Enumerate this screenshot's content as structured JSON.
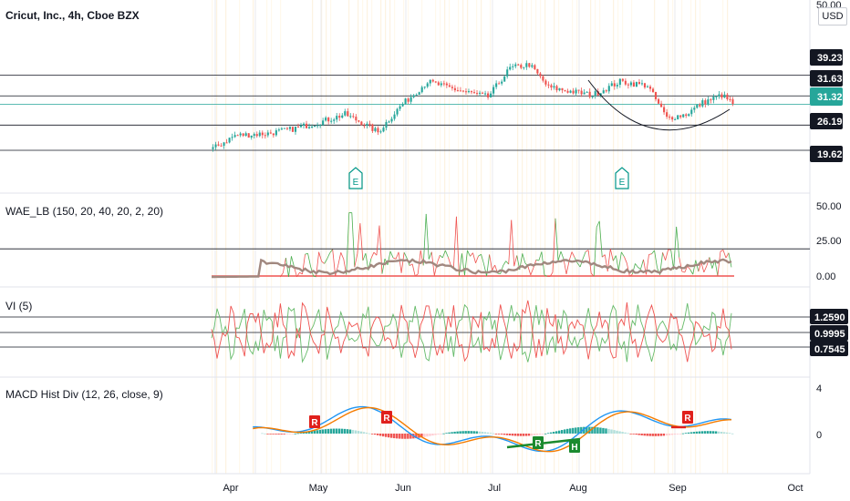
{
  "chart_data": {
    "type": "candlestick",
    "main_title": "Cricut, Inc., 4h, Cboe BZX",
    "currency_button": "USD",
    "x_axis_labels": [
      "Apr",
      "May",
      "Jun",
      "Jul",
      "Aug",
      "Sep",
      "Oct"
    ],
    "price_scale": {
      "top_label": "50.00",
      "level_labels": [
        "39.23",
        "31.63",
        "26.19",
        "19.62"
      ],
      "last_price": "31.32",
      "last_price_color": "#26a69a"
    },
    "earnings_markers": [
      "E",
      "E"
    ],
    "indicators": [
      {
        "name": "WAE_LB (150, 20, 40, 20, 2, 20)",
        "scale_labels": [
          "50.00",
          "25.00",
          "0.00"
        ]
      },
      {
        "name": "VI (5)",
        "scale_labels": [
          "1.2590",
          "0.9995",
          "0.7545"
        ]
      },
      {
        "name": "MACD Hist Div (12, 26, close, 9)",
        "scale_labels": [
          "4",
          "0"
        ],
        "divergence_labels": [
          "R",
          "R",
          "R",
          "H",
          "R"
        ]
      }
    ],
    "colors": {
      "up": "#26a69a",
      "down": "#ef5350",
      "ema_fast": "#2196f3",
      "ema_slow": "#f57c00",
      "wae_explosion": "#a1887f",
      "green": "#1b8a2e",
      "red": "#e0201b"
    }
  }
}
